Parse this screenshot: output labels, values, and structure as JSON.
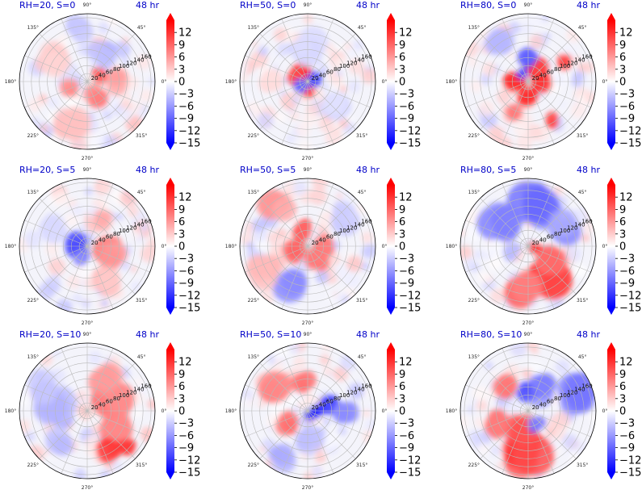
{
  "chart_data": {
    "type": "heatmap",
    "projection": "polar",
    "layout": "3x3 grid of polar panels, each with its own vertical colorbar",
    "time_label": "48 hr",
    "angle_ticks": [
      "0°",
      "45°",
      "90°",
      "135°",
      "180°",
      "225°",
      "270°",
      "315°"
    ],
    "radial_ticks": [
      20,
      40,
      60,
      80,
      100,
      120,
      140,
      160
    ],
    "radial_tick_angle_deg": 22.5,
    "colormap": "bwr",
    "colors": {
      "min": "#0000ff",
      "mid": "#ffffff",
      "max": "#ff0000",
      "title": "#0000c8"
    },
    "color_range": [
      -15,
      15
    ],
    "colorbar_ticks": [
      12,
      9,
      6,
      3,
      0,
      -3,
      -6,
      -9,
      -12,
      -15
    ],
    "colorbar_extend": "both",
    "grid": true,
    "panels": [
      {
        "title": "RH=20, S=0",
        "pattern": "weak mixed warm/cool anomalies, small red spots near center"
      },
      {
        "title": "RH=50, S=0",
        "pattern": "red ring near center with blue inner core, pale outer field"
      },
      {
        "title": "RH=80, S=0",
        "pattern": "strong red ring around blue center, scattered red blobs"
      },
      {
        "title": "RH=20, S=5",
        "pattern": "blue center, red to the east, pale outer field"
      },
      {
        "title": "RH=50, S=5",
        "pattern": "red spiral band around center, red northwest, blue south"
      },
      {
        "title": "RH=80, S=5",
        "pattern": "blue north, strong red southeast"
      },
      {
        "title": "RH=20, S=10",
        "pattern": "red east half, blue west half, red patches southeast"
      },
      {
        "title": "RH=50, S=10",
        "pattern": "blue core with red arcs, red northwest, blue east"
      },
      {
        "title": "RH=80, S=10",
        "pattern": "red south lobe, blue ring near center, blue outer east"
      }
    ]
  }
}
